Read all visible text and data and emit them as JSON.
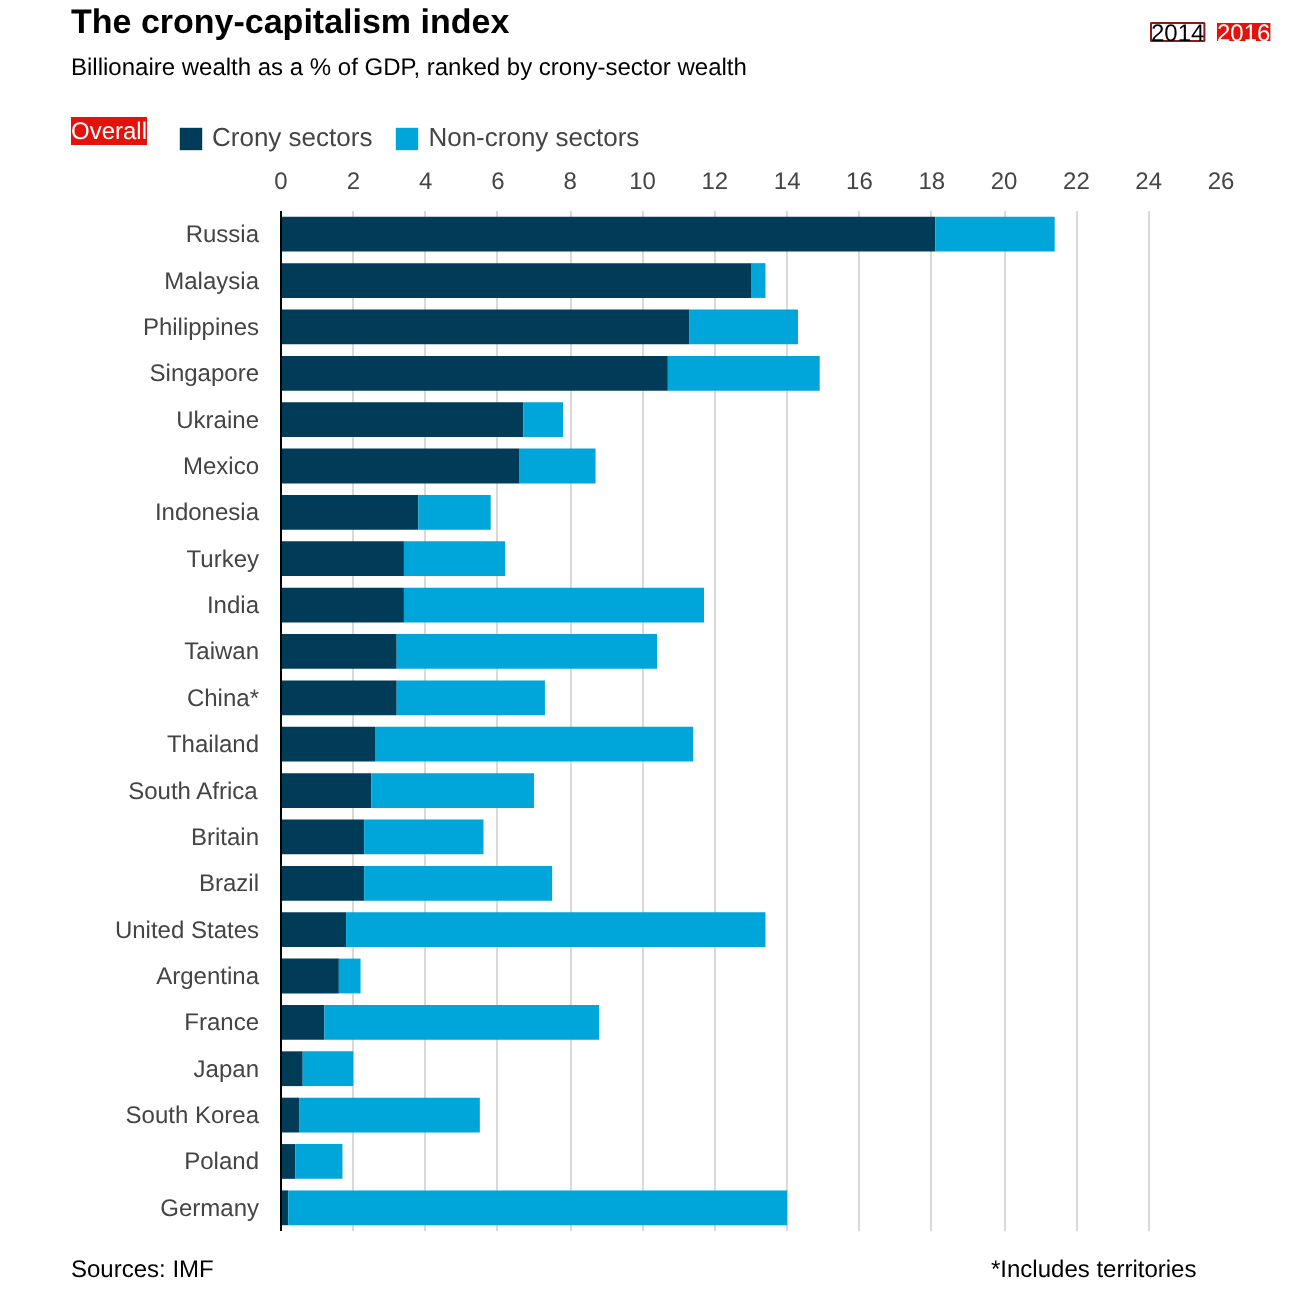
{
  "chart_data": {
    "type": "bar",
    "orientation": "horizontal",
    "stacked": true,
    "title": "The crony-capitalism index",
    "subtitle": "Billionaire wealth as a % of GDP, ranked by crony-sector wealth",
    "categories": [
      "Russia",
      "Malaysia",
      "Philippines",
      "Singapore",
      "Ukraine",
      "Mexico",
      "Indonesia",
      "Turkey",
      "India",
      "Taiwan",
      "China*",
      "Thailand",
      "South Africa",
      "Britain",
      "Brazil",
      "United States",
      "Argentina",
      "France",
      "Japan",
      "South Korea",
      "Poland",
      "Germany"
    ],
    "series": [
      {
        "name": "Crony sectors",
        "color": "#003c57",
        "values": [
          18.1,
          13.0,
          11.3,
          10.7,
          6.7,
          6.6,
          3.8,
          3.4,
          3.4,
          3.2,
          3.2,
          2.6,
          2.5,
          2.3,
          2.3,
          1.8,
          1.6,
          1.2,
          0.6,
          0.5,
          0.4,
          0.2
        ]
      },
      {
        "name": "Non-crony sectors",
        "color": "#00a6d9",
        "values": [
          3.3,
          0.4,
          3.0,
          4.2,
          1.1,
          2.1,
          2.0,
          2.8,
          8.3,
          7.2,
          4.1,
          8.8,
          4.5,
          3.3,
          5.2,
          11.6,
          0.6,
          7.6,
          1.4,
          5.0,
          1.3,
          13.8
        ]
      }
    ],
    "xlim": [
      0,
      26
    ],
    "xticks": [
      0,
      2,
      4,
      6,
      8,
      10,
      12,
      14,
      16,
      18,
      20,
      22,
      24,
      26
    ],
    "grid": "x",
    "legend": "top left",
    "annotations": [
      "Overall",
      "2014",
      "2016",
      "Sources: IMF",
      "*Includes territories"
    ]
  }
}
